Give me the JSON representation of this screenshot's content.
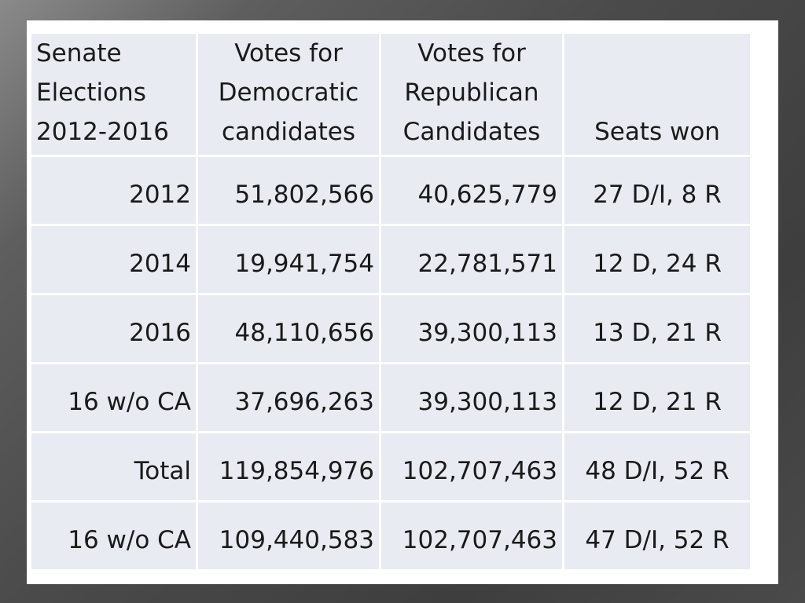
{
  "table": {
    "header": {
      "col1": [
        "Senate",
        "Elections",
        "2012-2016"
      ],
      "col2": [
        "Votes for",
        "Democratic",
        "candidates"
      ],
      "col3": [
        "Votes for",
        "Republican",
        "Candidates"
      ],
      "col4": [
        "Seats won"
      ]
    },
    "rows": [
      {
        "label": "2012",
        "dem": "51,802,566",
        "rep": "40,625,779",
        "seats": "27 D/I, 8 R"
      },
      {
        "label": "2014",
        "dem": "19,941,754",
        "rep": "22,781,571",
        "seats": "12 D, 24 R"
      },
      {
        "label": "2016",
        "dem": "48,110,656",
        "rep": "39,300,113",
        "seats": "13 D, 21 R"
      },
      {
        "label": "16 w/o CA",
        "dem": "37,696,263",
        "rep": "39,300,113",
        "seats": "12 D, 21 R"
      },
      {
        "label": "Total",
        "dem": "119,854,976",
        "rep": "102,707,463",
        "seats": "48 D/I, 52 R"
      },
      {
        "label": "16 w/o CA",
        "dem": "109,440,583",
        "rep": "102,707,463",
        "seats": "47 D/I, 52 R"
      }
    ]
  }
}
